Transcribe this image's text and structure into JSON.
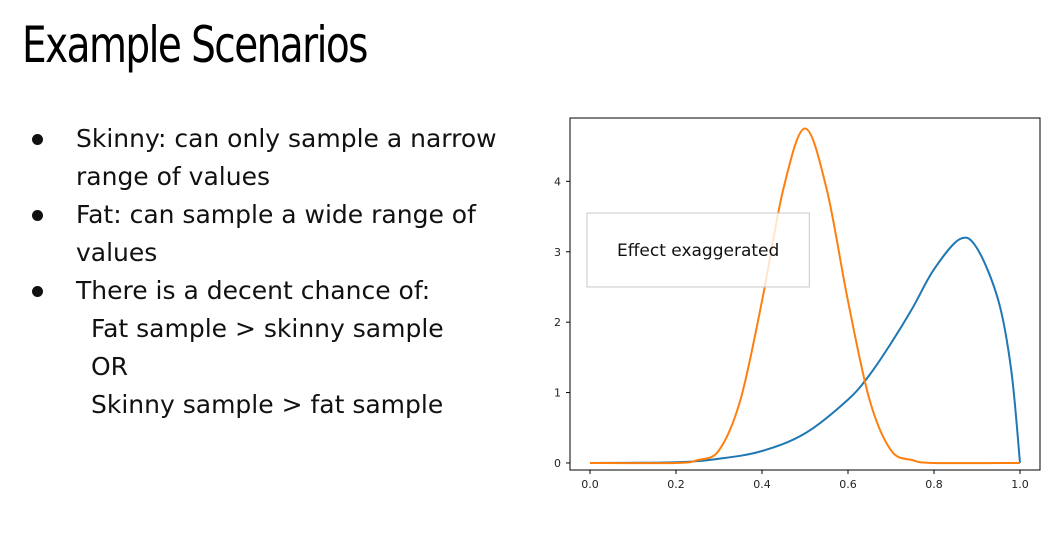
{
  "slide": {
    "title": "Example Scenarios",
    "bullets": [
      "Skinny: can only sample a narrow range of values",
      "Fat: can sample a wide range of values",
      "There is a decent chance of:"
    ],
    "sub_lines": [
      "Fat sample > skinny sample",
      "OR",
      "Skinny sample > fat sample"
    ]
  },
  "chart_data": {
    "type": "line",
    "annotation": "Effect exaggerated",
    "xlim": [
      0.0,
      1.0
    ],
    "ylim": [
      -0.1,
      4.9
    ],
    "xticks": [
      "0.0",
      "0.2",
      "0.4",
      "0.6",
      "0.8",
      "1.0"
    ],
    "yticks": [
      "0",
      "1",
      "2",
      "3",
      "4"
    ],
    "grid": false,
    "series": [
      {
        "color": "#1f77b4",
        "x": [
          0.0,
          0.2,
          0.3,
          0.4,
          0.5,
          0.6,
          0.65,
          0.7,
          0.75,
          0.8,
          0.86,
          0.9,
          0.95,
          0.98,
          1.0
        ],
        "y": [
          0.0,
          0.01,
          0.06,
          0.17,
          0.42,
          0.9,
          1.25,
          1.7,
          2.2,
          2.75,
          3.18,
          3.05,
          2.3,
          1.3,
          0.0
        ]
      },
      {
        "color": "#ff7f0e",
        "x": [
          0.0,
          0.2,
          0.25,
          0.3,
          0.35,
          0.4,
          0.45,
          0.5,
          0.55,
          0.6,
          0.65,
          0.7,
          0.75,
          0.8,
          1.0
        ],
        "y": [
          0.0,
          0.0,
          0.04,
          0.18,
          0.9,
          2.3,
          3.9,
          4.75,
          3.9,
          2.3,
          0.9,
          0.18,
          0.04,
          0.0,
          0.0
        ]
      }
    ]
  }
}
